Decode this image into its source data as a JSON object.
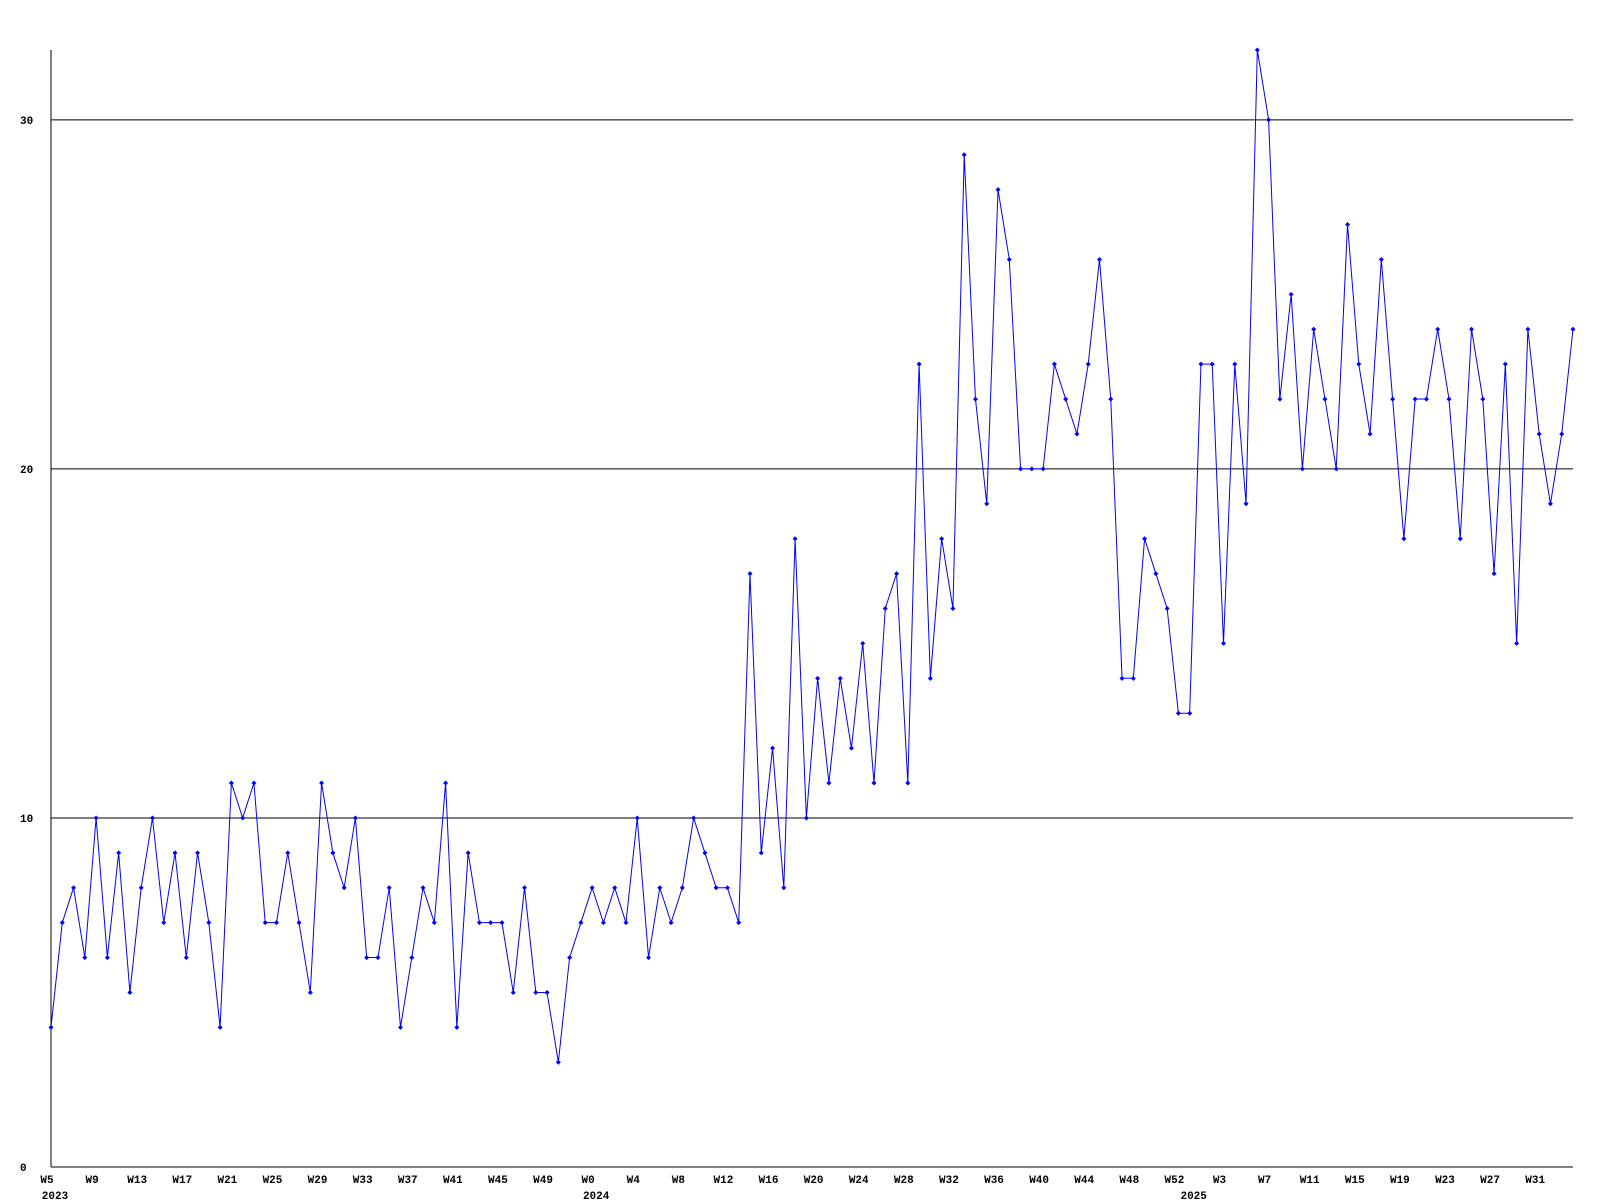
{
  "chart_data": {
    "type": "line",
    "color": "#0000ff",
    "grid": true,
    "ylim": [
      0,
      32
    ],
    "yticks": [
      0,
      10,
      20,
      30
    ],
    "categories": [
      "W5",
      null,
      null,
      null,
      "W9",
      null,
      null,
      null,
      "W13",
      null,
      null,
      null,
      "W17",
      null,
      null,
      null,
      "W21",
      null,
      null,
      null,
      "W25",
      null,
      null,
      null,
      "W29",
      null,
      null,
      null,
      "W33",
      null,
      null,
      null,
      "W37",
      null,
      null,
      null,
      "W41",
      null,
      null,
      null,
      "W45",
      null,
      null,
      null,
      "W49",
      null,
      null,
      null,
      "W0",
      null,
      null,
      null,
      "W4",
      null,
      null,
      null,
      "W8",
      null,
      null,
      null,
      "W12",
      null,
      null,
      null,
      "W16",
      null,
      null,
      null,
      "W20",
      null,
      null,
      null,
      "W24",
      null,
      null,
      null,
      "W28",
      null,
      null,
      null,
      "W32",
      null,
      null,
      null,
      "W36",
      null,
      null,
      null,
      "W40",
      null,
      null,
      null,
      "W44",
      null,
      null,
      null,
      "W48",
      null,
      null,
      null,
      "W52",
      null,
      null,
      null,
      "W3",
      null,
      null,
      null,
      "W7",
      null,
      null,
      null,
      "W11",
      null,
      null,
      null,
      "W15",
      null,
      null,
      null,
      "W19",
      null,
      null,
      null,
      "W23",
      null,
      null,
      null,
      "W27",
      null,
      null,
      null,
      "W31",
      null,
      null,
      null
    ],
    "years": [
      "2023",
      null,
      null,
      null,
      null,
      null,
      null,
      null,
      null,
      null,
      null,
      null,
      null,
      null,
      null,
      null,
      null,
      null,
      null,
      null,
      null,
      null,
      null,
      null,
      null,
      null,
      null,
      null,
      null,
      null,
      null,
      null,
      null,
      null,
      null,
      null,
      null,
      null,
      null,
      null,
      null,
      null,
      null,
      null,
      null,
      null,
      null,
      null,
      "2024",
      null,
      null,
      null,
      null,
      null,
      null,
      null,
      null,
      null,
      null,
      null,
      null,
      null,
      null,
      null,
      null,
      null,
      null,
      null,
      null,
      null,
      null,
      null,
      null,
      null,
      null,
      null,
      null,
      null,
      null,
      null,
      null,
      null,
      null,
      null,
      null,
      null,
      null,
      null,
      null,
      null,
      null,
      null,
      null,
      null,
      null,
      null,
      null,
      null,
      null,
      null,
      null,
      "2025",
      null,
      null,
      null,
      null,
      null,
      null,
      null,
      null,
      null,
      null,
      null,
      null,
      null,
      null,
      null,
      null,
      null,
      null,
      null,
      null,
      null,
      null,
      null,
      null,
      null,
      null,
      null,
      null,
      null,
      null,
      null,
      null,
      null,
      null
    ],
    "values": [
      4,
      7,
      8,
      6,
      10,
      6,
      9,
      5,
      8,
      10,
      7,
      9,
      6,
      9,
      7,
      4,
      11,
      10,
      11,
      7,
      7,
      9,
      7,
      5,
      11,
      9,
      8,
      10,
      6,
      6,
      8,
      4,
      6,
      8,
      7,
      11,
      4,
      9,
      7,
      7,
      7,
      5,
      8,
      5,
      5,
      3,
      6,
      7,
      8,
      7,
      8,
      7,
      10,
      6,
      8,
      7,
      8,
      10,
      9,
      8,
      8,
      7,
      17,
      9,
      12,
      8,
      18,
      10,
      14,
      11,
      14,
      12,
      15,
      11,
      16,
      17,
      11,
      23,
      14,
      18,
      16,
      29,
      22,
      19,
      28,
      26,
      20,
      20,
      20,
      23,
      22,
      21,
      23,
      26,
      22,
      14,
      14,
      18,
      17,
      16,
      13,
      13,
      23,
      23,
      15,
      23,
      19,
      32,
      30,
      22,
      25,
      20,
      24,
      22,
      20,
      27,
      23,
      21,
      26,
      22,
      18,
      22,
      22,
      24,
      22,
      18,
      24,
      22,
      17,
      23,
      15,
      24,
      21,
      19,
      21,
      24
    ]
  }
}
